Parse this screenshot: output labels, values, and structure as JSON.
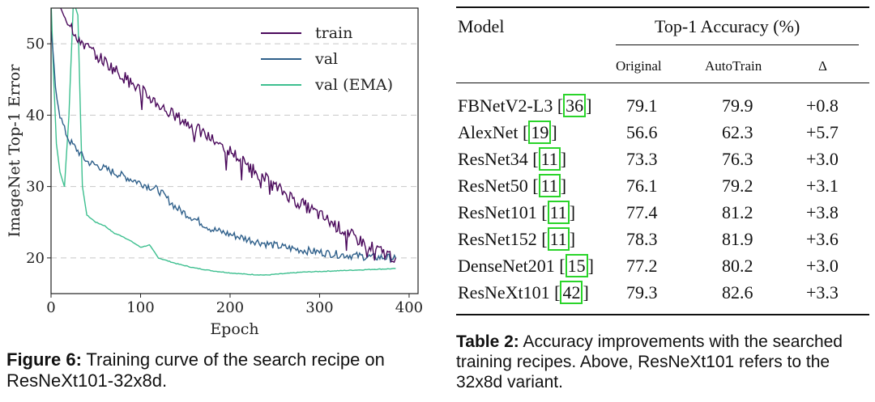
{
  "figure": {
    "caption_label": "Figure 6:",
    "caption_text": "Training curve of the search recipe on ResNeXt101-32x8d.",
    "chart_data": {
      "type": "line",
      "title": "",
      "xlabel": "Epoch",
      "ylabel": "ImageNet Top-1 Error",
      "xlim": [
        0,
        410
      ],
      "ylim": [
        15,
        55
      ],
      "xticks": [
        0,
        100,
        200,
        300,
        400
      ],
      "yticks": [
        20,
        30,
        40,
        50
      ],
      "grid": "horizontal-dashed",
      "legend": "top-right",
      "series": [
        {
          "name": "train",
          "color": "#4b0a5c",
          "x": [
            0,
            10,
            20,
            30,
            40,
            50,
            60,
            70,
            80,
            90,
            100,
            110,
            120,
            130,
            140,
            150,
            160,
            170,
            180,
            190,
            200,
            210,
            220,
            230,
            240,
            250,
            260,
            270,
            280,
            290,
            300,
            310,
            320,
            330,
            340,
            350,
            360,
            370,
            380,
            385
          ],
          "y": [
            56,
            55,
            53,
            51,
            49.5,
            48.5,
            47.5,
            46.5,
            45.5,
            44.5,
            43.5,
            42.5,
            41.5,
            40.5,
            39.8,
            39,
            38.2,
            37.4,
            36.6,
            35.8,
            35,
            34,
            33,
            32,
            31,
            30,
            29.2,
            28.4,
            27.6,
            26.8,
            26,
            25.2,
            24.4,
            23.6,
            22.8,
            22.1,
            21.4,
            20.8,
            20.3,
            20
          ]
        },
        {
          "name": "val",
          "color": "#2e5f8a",
          "x": [
            0,
            5,
            10,
            15,
            20,
            30,
            40,
            50,
            60,
            70,
            80,
            90,
            100,
            110,
            120,
            140,
            160,
            180,
            200,
            220,
            240,
            260,
            280,
            300,
            320,
            340,
            360,
            385
          ],
          "y": [
            52,
            44,
            40,
            38,
            36.5,
            35,
            33.5,
            33,
            32.5,
            32,
            31.5,
            31,
            30.5,
            30,
            29.5,
            27,
            25.5,
            24,
            23.3,
            22.6,
            22,
            21.5,
            21.1,
            20.8,
            20.5,
            20.3,
            20.1,
            20
          ]
        },
        {
          "name": "val (EMA)",
          "color": "#3dbf8f",
          "x": [
            0,
            3,
            6,
            10,
            15,
            20,
            25,
            30,
            35,
            40,
            50,
            60,
            70,
            80,
            90,
            100,
            110,
            120,
            140,
            160,
            180,
            200,
            220,
            240,
            260,
            280,
            300,
            320,
            340,
            360,
            385
          ],
          "y": [
            56,
            45,
            36,
            32,
            30,
            40,
            56,
            54,
            30,
            26,
            25,
            24.5,
            23.5,
            23,
            22.3,
            21.5,
            21.8,
            20,
            19.2,
            18.6,
            18.2,
            17.9,
            17.7,
            17.6,
            17.8,
            18,
            18.1,
            18.2,
            18.3,
            18.4,
            18.5
          ]
        }
      ]
    }
  },
  "table": {
    "header_model": "Model",
    "header_group": "Top-1 Accuracy (%)",
    "sub_original": "Original",
    "sub_autotrain": "AutoTrain",
    "sub_delta": "Δ",
    "rows": [
      {
        "model": "FBNetV2-L3 [",
        "cite": "36",
        "close": "]",
        "original": "79.1",
        "autotrain": "79.9",
        "delta": "+0.8"
      },
      {
        "model": "AlexNet [",
        "cite": "19",
        "close": "]",
        "original": "56.6",
        "autotrain": "62.3",
        "delta": "+5.7"
      },
      {
        "model": "ResNet34 [",
        "cite": "11",
        "close": "]",
        "original": "73.3",
        "autotrain": "76.3",
        "delta": "+3.0"
      },
      {
        "model": "ResNet50 [",
        "cite": "11",
        "close": "]",
        "original": "76.1",
        "autotrain": "79.2",
        "delta": "+3.1"
      },
      {
        "model": "ResNet101 [",
        "cite": "11",
        "close": "]",
        "original": "77.4",
        "autotrain": "81.2",
        "delta": "+3.8"
      },
      {
        "model": "ResNet152 [",
        "cite": "11",
        "close": "]",
        "original": "78.3",
        "autotrain": "81.9",
        "delta": "+3.6"
      },
      {
        "model": "DenseNet201 [",
        "cite": "15",
        "close": "]",
        "original": "77.2",
        "autotrain": "80.2",
        "delta": "+3.0"
      },
      {
        "model": "ResNeXt101 [",
        "cite": "42",
        "close": "]",
        "original": "79.3",
        "autotrain": "82.6",
        "delta": "+3.3"
      }
    ],
    "caption_label": "Table 2:",
    "caption_text": "Accuracy improvements with the searched training recipes. Above, ResNeXt101 refers to the 32x8d variant."
  }
}
